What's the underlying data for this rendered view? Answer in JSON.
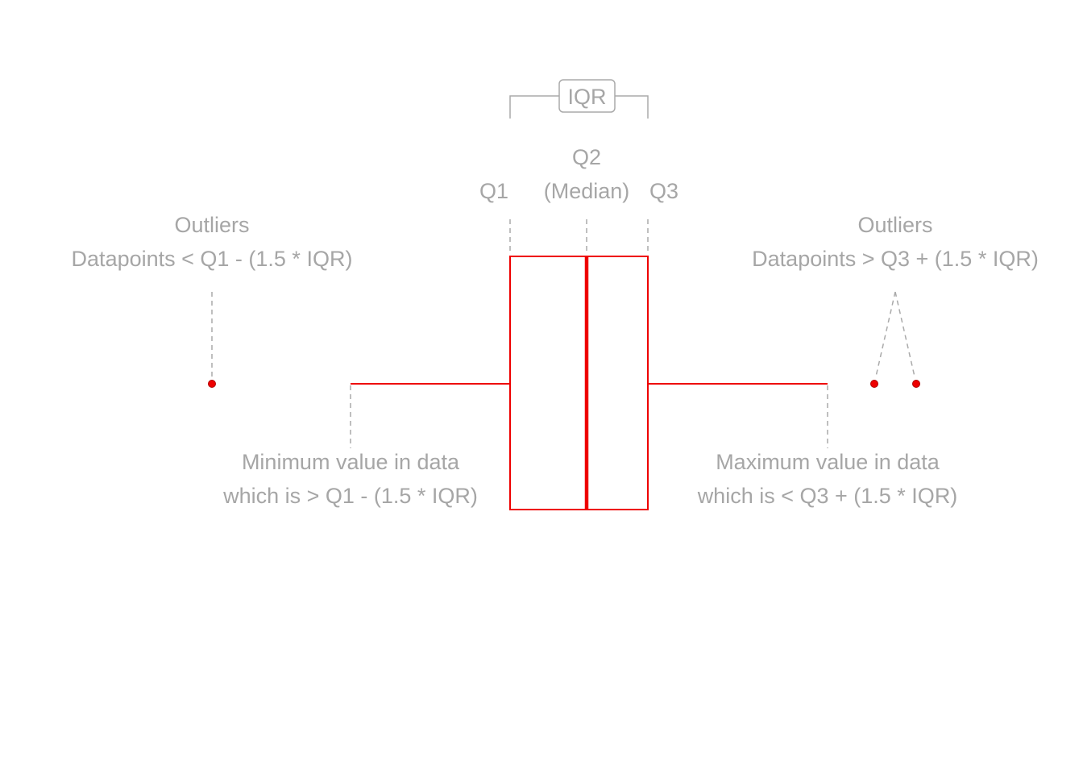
{
  "colors": {
    "box": "#ee0000",
    "annotation": "#aaaaaa",
    "text": "#a6a6a6",
    "background": "#ffffff"
  },
  "iqr_label": "IQR",
  "q1_label": "Q1",
  "q2_label": "Q2",
  "median_label": "(Median)",
  "q3_label": "Q3",
  "outliers_low": {
    "title": "Outliers",
    "rule": "Datapoints < Q1 - (1.5 * IQR)"
  },
  "outliers_high": {
    "title": "Outliers",
    "rule": "Datapoints > Q3 + (1.5 * IQR)"
  },
  "min_whisker": {
    "line1": "Minimum value in data",
    "line2": "which is > Q1 - (1.5 * IQR)"
  },
  "max_whisker": {
    "line1": "Maximum value in data",
    "line2": "which is < Q3 + (1.5 * IQR)"
  }
}
